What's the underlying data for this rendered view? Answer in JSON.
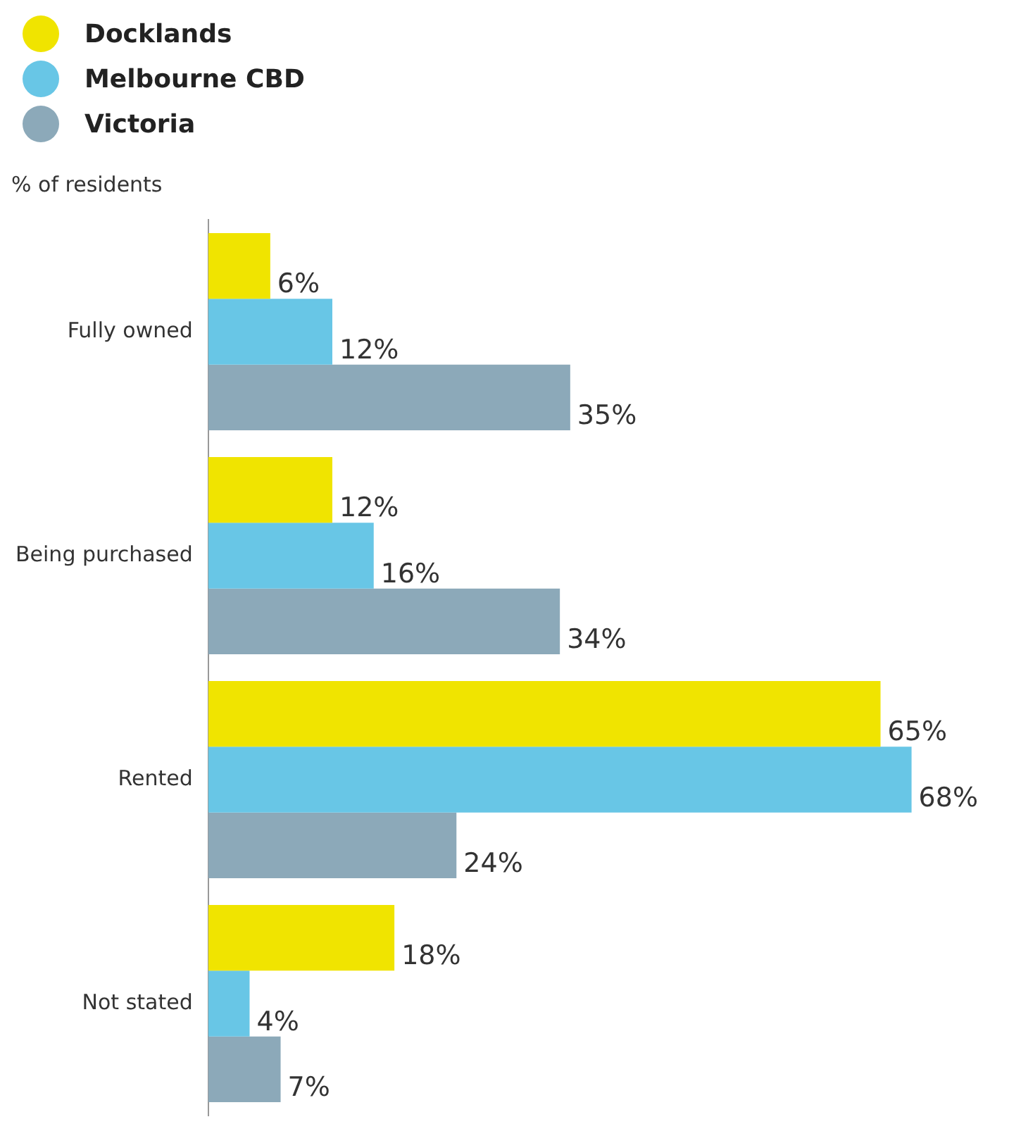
{
  "chart_data": {
    "type": "bar",
    "orientation": "horizontal",
    "xlabel": "% of residents",
    "categories": [
      "Fully owned",
      "Being purchased",
      "Rented",
      "Not stated"
    ],
    "legend": "top left",
    "series": [
      {
        "name": "Docklands",
        "color": "#f0e400",
        "values": [
          6,
          12,
          65,
          18
        ],
        "value_labels": [
          "6%",
          "12%",
          "65%",
          "18%"
        ]
      },
      {
        "name": "Melbourne CBD",
        "color": "#68c6e6",
        "values": [
          12,
          16,
          68,
          4
        ],
        "value_labels": [
          "12%",
          "16%",
          "68%",
          "4%"
        ]
      },
      {
        "name": "Victoria",
        "color": "#8ca9b9",
        "values": [
          35,
          34,
          24,
          7
        ],
        "value_labels": [
          "35%",
          "34%",
          "24%",
          "7%"
        ]
      }
    ]
  }
}
